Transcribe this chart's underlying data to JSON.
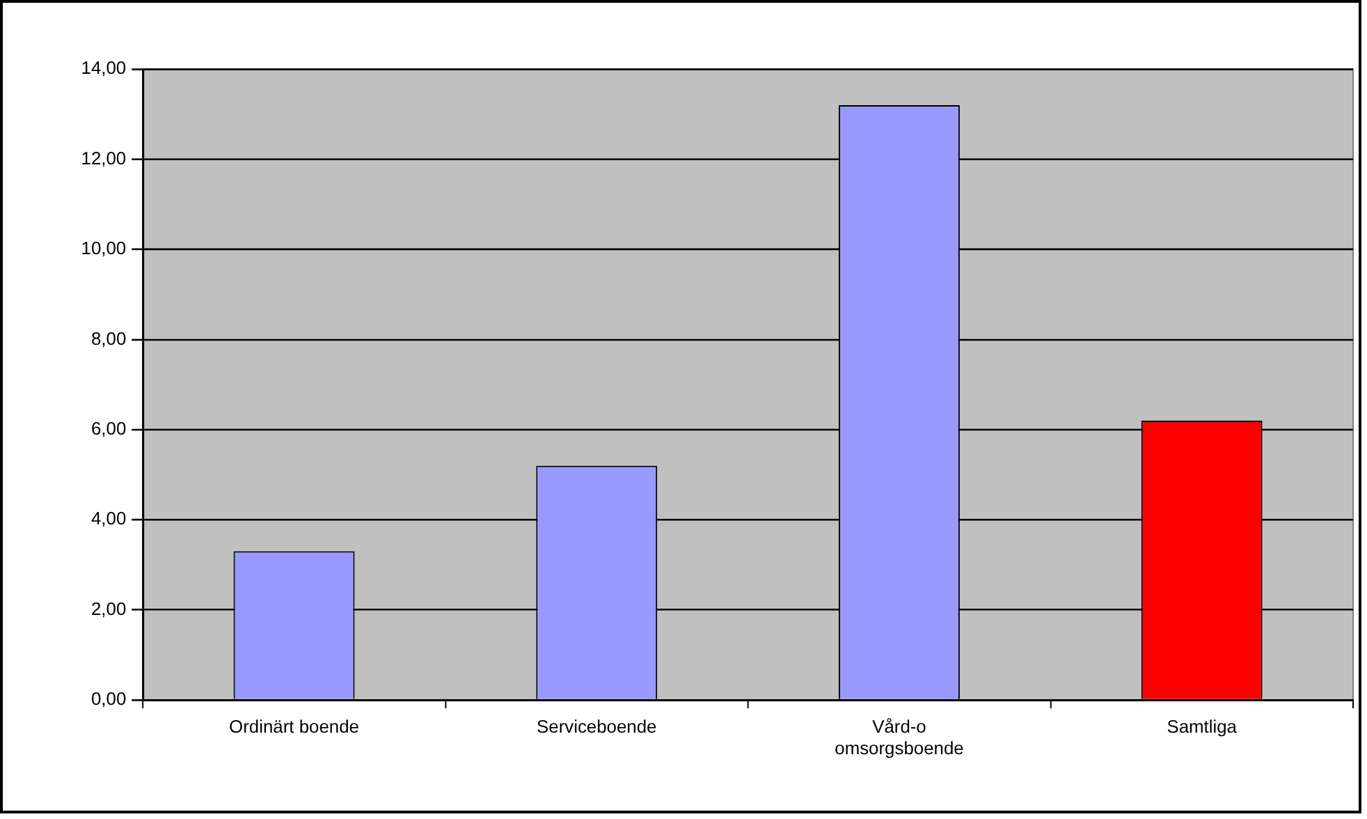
{
  "chart_data": {
    "type": "bar",
    "categories": [
      "Ordinärt boende",
      "Serviceboende",
      "Vård-o omsorgsboende",
      "Samtliga"
    ],
    "values": [
      3.3,
      5.2,
      13.2,
      6.2
    ],
    "colors": [
      "#9999ff",
      "#9999ff",
      "#9999ff",
      "#ff0000"
    ],
    "ylim": [
      0,
      14
    ],
    "yticks": [
      {
        "value": 0,
        "label": "0,00"
      },
      {
        "value": 2,
        "label": "2,00"
      },
      {
        "value": 4,
        "label": "4,00"
      },
      {
        "value": 6,
        "label": "6,00"
      },
      {
        "value": 8,
        "label": "8,00"
      },
      {
        "value": 10,
        "label": "10,00"
      },
      {
        "value": 12,
        "label": "12,00"
      },
      {
        "value": 14,
        "label": "14,00"
      }
    ],
    "grid": "y",
    "legend": false
  }
}
